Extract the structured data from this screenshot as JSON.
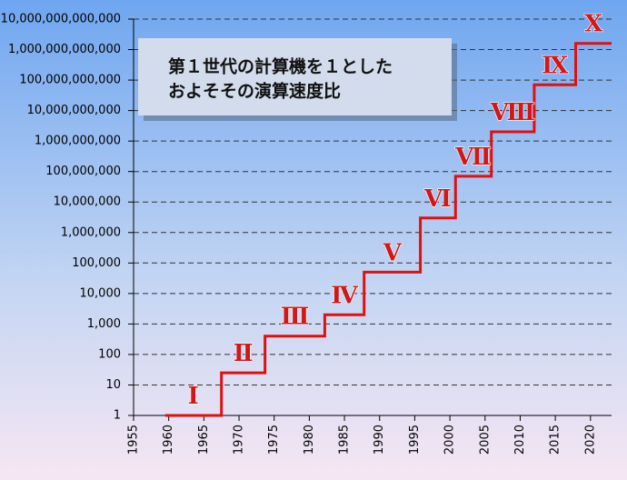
{
  "chart_data": {
    "type": "line",
    "step": true,
    "log_y": true,
    "grid": true,
    "title_lines": [
      "第１世代の計算機を１とした",
      "およそその演算速度比"
    ],
    "x": [
      1959.5,
      1967.5,
      1973.7,
      1982.2,
      1987.8,
      1995.8,
      2000.8,
      2005.9,
      2012,
      2017.9,
      2023
    ],
    "series": [
      {
        "color": "#e01010",
        "values": [
          1,
          25,
          400,
          2000,
          50000,
          3000000,
          70000000,
          2000000000,
          70000000000,
          1600000000000,
          1600000000000
        ]
      }
    ],
    "generations": [
      "Ⅰ",
      "Ⅱ",
      "Ⅲ",
      "Ⅳ",
      "Ⅴ",
      "Ⅵ",
      "Ⅶ",
      "Ⅷ",
      "Ⅸ",
      "Ⅹ"
    ],
    "xlim": [
      1955,
      2023
    ],
    "xticks": [
      1955,
      1960,
      1965,
      1970,
      1975,
      1980,
      1985,
      1990,
      1995,
      2000,
      2005,
      2010,
      2015,
      2020
    ],
    "ylim": [
      1,
      10000000000000
    ],
    "yticks": [
      1,
      10,
      100,
      {
        "value": 1000,
        "label": "1,000"
      },
      {
        "value": 10000,
        "label": "10,000"
      },
      {
        "value": 100000,
        "label": "100,000"
      },
      {
        "value": 1000000,
        "label": "1,000,000"
      },
      {
        "value": 10000000,
        "label": "10,000,000"
      },
      {
        "value": 100000000,
        "label": "100,000,000"
      },
      {
        "value": 1000000000,
        "label": "1,000,000,000"
      },
      {
        "value": 10000000000,
        "label": "10,000,000,000"
      },
      {
        "value": 100000000000,
        "label": "100,000,000,000"
      },
      {
        "value": 1000000000000,
        "label": "1,000,000,000,000"
      },
      {
        "value": 10000000000000,
        "label": "10,000,000,000,000"
      }
    ]
  }
}
